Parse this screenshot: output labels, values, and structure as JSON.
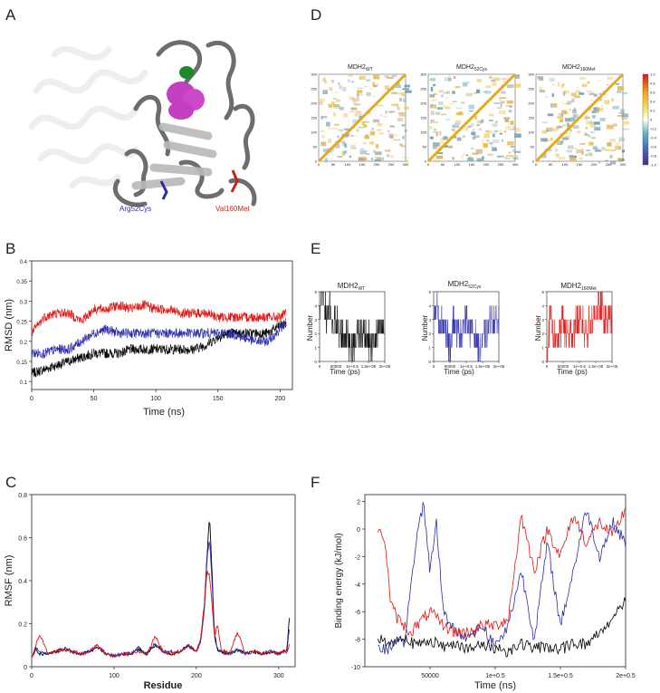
{
  "panels": {
    "A": {
      "letter": "A",
      "labels": [
        "Arg52Cys",
        "Val160Met"
      ]
    },
    "B": {
      "letter": "B",
      "xlabel": "Time (ns)",
      "ylabel": "RMSD (nm)",
      "xticks": [
        "0",
        "50",
        "100",
        "150",
        "200"
      ],
      "yticks": [
        "0.1",
        "0.15",
        "0.2",
        "0.25",
        "0.3",
        "0.35",
        "0.4"
      ]
    },
    "C": {
      "letter": "C",
      "xlabel": "Residue",
      "ylabel": "RMSF (nm)",
      "xticks": [
        "0",
        "100",
        "200",
        "300"
      ],
      "yticks": [
        "0",
        "0.2",
        "0.4",
        "0.6",
        "0.8"
      ]
    },
    "D": {
      "letter": "D",
      "maps": [
        {
          "base": "MDH2",
          "sub": "WT"
        },
        {
          "base": "MDH2",
          "sub": "52Cys"
        },
        {
          "base": "MDH2",
          "sub": "160Met"
        }
      ],
      "xticks_1": [
        "0",
        "50",
        "100",
        "150",
        "200",
        "250",
        "300"
      ],
      "xticks_2": [
        "0",
        "50",
        "100",
        "150",
        "200",
        "250",
        "300"
      ],
      "xticks_3": [
        "0",
        "50",
        "100",
        "150",
        "200",
        "250",
        "300"
      ],
      "yticks": [
        "0",
        "50",
        "100",
        "150",
        "200",
        "250",
        "300"
      ],
      "colorbar_ticks": [
        "1.0",
        "0.8",
        "0.6",
        "0.4",
        "0.2",
        "0",
        "-0.2",
        "-0.4",
        "-0.6",
        "-0.8",
        "-1.0"
      ]
    },
    "E": {
      "letter": "E",
      "titles": [
        {
          "base": "MDH2",
          "sub": "WT"
        },
        {
          "base": "MDH2",
          "sub": "52Cys"
        },
        {
          "base": "MDH2",
          "sub": "160Met"
        }
      ],
      "xlabel": "Time (ps)",
      "ylabel": "Number",
      "xticks": [
        "0",
        "50000",
        "1e+0.5",
        "1.5e+05",
        "2e+05"
      ],
      "yticks": [
        "0",
        "1",
        "2",
        "3",
        "4",
        "5"
      ]
    },
    "F": {
      "letter": "F",
      "xlabel": "Time (ns)",
      "ylabel": "Binding energy (kJ/mol)",
      "xticks": [
        "50000",
        "1e+0.5",
        "1.5e+0.5",
        "2e+0.5"
      ],
      "yticks": [
        "2",
        "0",
        "-2",
        "-4",
        "-6",
        "-8",
        "-10"
      ]
    }
  },
  "colors": {
    "wt": "#000000",
    "cys": "#2c2ca8",
    "met": "#e11414"
  },
  "chart_data": [
    {
      "panel": "B",
      "type": "line",
      "xlabel": "Time (ns)",
      "ylabel": "RMSD (nm)",
      "xlim": [
        0,
        210
      ],
      "ylim": [
        0.08,
        0.4
      ],
      "grid": false,
      "series": [
        {
          "x": [
            0,
            10,
            20,
            30,
            40,
            50,
            60,
            70,
            80,
            90,
            100,
            110,
            120,
            130,
            140,
            150,
            160,
            170,
            180,
            190,
            200,
            205
          ],
          "values": [
            0.12,
            0.13,
            0.14,
            0.15,
            0.16,
            0.17,
            0.17,
            0.17,
            0.18,
            0.18,
            0.18,
            0.18,
            0.18,
            0.18,
            0.19,
            0.21,
            0.22,
            0.22,
            0.22,
            0.22,
            0.24,
            0.24
          ]
        },
        {
          "x": [
            0,
            10,
            20,
            30,
            40,
            50,
            60,
            70,
            80,
            90,
            100,
            110,
            120,
            130,
            140,
            150,
            160,
            170,
            180,
            190,
            200,
            205
          ],
          "values": [
            0.17,
            0.17,
            0.18,
            0.18,
            0.2,
            0.22,
            0.23,
            0.22,
            0.22,
            0.22,
            0.22,
            0.22,
            0.22,
            0.22,
            0.22,
            0.22,
            0.22,
            0.21,
            0.2,
            0.2,
            0.23,
            0.25
          ]
        },
        {
          "x": [
            0,
            10,
            20,
            30,
            40,
            50,
            60,
            70,
            80,
            90,
            100,
            110,
            120,
            130,
            140,
            150,
            160,
            170,
            180,
            190,
            200,
            205
          ],
          "values": [
            0.22,
            0.26,
            0.27,
            0.27,
            0.25,
            0.28,
            0.28,
            0.29,
            0.28,
            0.29,
            0.28,
            0.28,
            0.27,
            0.27,
            0.27,
            0.26,
            0.26,
            0.26,
            0.26,
            0.26,
            0.26,
            0.27
          ]
        }
      ]
    },
    {
      "panel": "C",
      "type": "line",
      "xlabel": "Residue",
      "ylabel": "RMSF (nm)",
      "xlim": [
        0,
        320
      ],
      "ylim": [
        0,
        0.8
      ],
      "grid": false,
      "series": [
        {
          "x": [
            1,
            5,
            10,
            20,
            30,
            40,
            50,
            60,
            70,
            80,
            90,
            100,
            110,
            120,
            130,
            140,
            150,
            160,
            170,
            180,
            190,
            200,
            205,
            210,
            213,
            216,
            219,
            222,
            226,
            230,
            240,
            250,
            260,
            270,
            280,
            290,
            300,
            305,
            310,
            313
          ],
          "values": [
            0.05,
            0.08,
            0.06,
            0.06,
            0.07,
            0.08,
            0.07,
            0.06,
            0.07,
            0.09,
            0.06,
            0.05,
            0.06,
            0.06,
            0.08,
            0.06,
            0.1,
            0.07,
            0.06,
            0.07,
            0.1,
            0.07,
            0.12,
            0.3,
            0.52,
            0.7,
            0.45,
            0.15,
            0.08,
            0.07,
            0.06,
            0.08,
            0.06,
            0.07,
            0.06,
            0.07,
            0.06,
            0.07,
            0.08,
            0.22
          ]
        },
        {
          "x": [
            1,
            5,
            10,
            20,
            30,
            40,
            50,
            60,
            70,
            80,
            90,
            100,
            110,
            120,
            130,
            140,
            150,
            160,
            170,
            180,
            190,
            200,
            205,
            210,
            213,
            216,
            219,
            222,
            226,
            230,
            240,
            250,
            260,
            270,
            280,
            290,
            300,
            305,
            310,
            313
          ],
          "values": [
            0.05,
            0.09,
            0.07,
            0.06,
            0.07,
            0.09,
            0.07,
            0.06,
            0.07,
            0.1,
            0.06,
            0.05,
            0.06,
            0.06,
            0.09,
            0.06,
            0.11,
            0.07,
            0.07,
            0.07,
            0.1,
            0.07,
            0.11,
            0.27,
            0.5,
            0.6,
            0.4,
            0.14,
            0.08,
            0.07,
            0.06,
            0.08,
            0.06,
            0.07,
            0.06,
            0.07,
            0.06,
            0.07,
            0.07,
            0.18
          ]
        },
        {
          "x": [
            1,
            5,
            10,
            20,
            30,
            40,
            50,
            60,
            70,
            80,
            90,
            100,
            110,
            120,
            130,
            140,
            150,
            160,
            170,
            180,
            190,
            200,
            205,
            210,
            213,
            216,
            219,
            222,
            226,
            230,
            240,
            250,
            260,
            270,
            280,
            290,
            300,
            305,
            310,
            313
          ],
          "values": [
            0.05,
            0.1,
            0.15,
            0.06,
            0.07,
            0.08,
            0.07,
            0.06,
            0.07,
            0.1,
            0.06,
            0.05,
            0.06,
            0.06,
            0.07,
            0.06,
            0.14,
            0.07,
            0.06,
            0.07,
            0.1,
            0.07,
            0.12,
            0.3,
            0.45,
            0.42,
            0.3,
            0.14,
            0.2,
            0.08,
            0.06,
            0.16,
            0.06,
            0.07,
            0.06,
            0.07,
            0.06,
            0.07,
            0.07,
            0.1
          ]
        }
      ]
    },
    {
      "panel": "F",
      "type": "line",
      "xlabel": "Time (ns)",
      "ylabel": "Binding energy (kJ/mol)",
      "xlim": [
        0,
        200000
      ],
      "ylim": [
        -10,
        2.5
      ],
      "grid": false,
      "series": [
        {
          "x": [
            10000,
            20000,
            30000,
            40000,
            50000,
            60000,
            70000,
            80000,
            90000,
            100000,
            110000,
            120000,
            130000,
            140000,
            150000,
            160000,
            170000,
            180000,
            190000,
            200000
          ],
          "values": [
            -8.0,
            -8.3,
            -7.8,
            -8.5,
            -8.0,
            -8.6,
            -8.2,
            -8.8,
            -8.4,
            -8.6,
            -8.9,
            -8.3,
            -8.7,
            -8.5,
            -8.8,
            -8.2,
            -8.4,
            -7.5,
            -6.5,
            -5.0
          ]
        },
        {
          "x": [
            10000,
            20000,
            30000,
            40000,
            45000,
            50000,
            55000,
            60000,
            70000,
            80000,
            90000,
            100000,
            110000,
            120000,
            130000,
            140000,
            150000,
            160000,
            170000,
            180000,
            190000,
            200000
          ],
          "values": [
            -8.8,
            -8.6,
            -8.3,
            -0.5,
            2.0,
            -3.0,
            0.5,
            -6.0,
            -7.5,
            -7.8,
            -7.0,
            -8.5,
            -7.0,
            -3.0,
            -8.0,
            -1.0,
            -7.0,
            -3.0,
            1.5,
            -2.0,
            0.5,
            -1.0
          ]
        },
        {
          "x": [
            10000,
            15000,
            20000,
            25000,
            30000,
            35000,
            40000,
            50000,
            60000,
            70000,
            80000,
            90000,
            100000,
            110000,
            120000,
            130000,
            140000,
            150000,
            160000,
            170000,
            180000,
            190000,
            200000
          ],
          "values": [
            -0.3,
            -0.5,
            -5.5,
            -6.5,
            -7.0,
            -7.5,
            -7.0,
            -6.0,
            -7.0,
            -7.5,
            -7.5,
            -7.0,
            -7.0,
            -6.5,
            1.0,
            -3.0,
            0.0,
            -2.0,
            1.0,
            -1.0,
            0.5,
            -0.5,
            1.5
          ]
        }
      ]
    },
    {
      "panel": "E",
      "type": "line",
      "xlabel": "Time (ps)",
      "ylabel": "Number",
      "xlim": [
        0,
        200000
      ],
      "ylim": [
        0,
        5
      ],
      "grid": false,
      "series": [
        {
          "name": "MDH2WT",
          "x": [
            0,
            10000,
            20000,
            30000,
            40000,
            50000,
            60000,
            80000,
            100000,
            120000,
            140000,
            160000,
            180000,
            200000
          ],
          "values": [
            4,
            5,
            3,
            4,
            2,
            3,
            2,
            2,
            1,
            2,
            2,
            1,
            2,
            2
          ]
        },
        {
          "name": "MDH252Cys",
          "x": [
            0,
            10000,
            20000,
            30000,
            40000,
            50000,
            60000,
            80000,
            100000,
            120000,
            140000,
            160000,
            180000,
            200000
          ],
          "values": [
            3,
            4,
            2,
            3,
            2,
            1,
            3,
            2,
            3,
            2,
            1,
            2,
            3,
            3
          ]
        },
        {
          "name": "MDH2160Met",
          "x": [
            0,
            10000,
            20000,
            30000,
            40000,
            50000,
            60000,
            80000,
            100000,
            120000,
            140000,
            160000,
            180000,
            200000
          ],
          "values": [
            1,
            3,
            2,
            1,
            2,
            3,
            2,
            2,
            3,
            2,
            3,
            4,
            3,
            3
          ]
        }
      ]
    }
  ]
}
